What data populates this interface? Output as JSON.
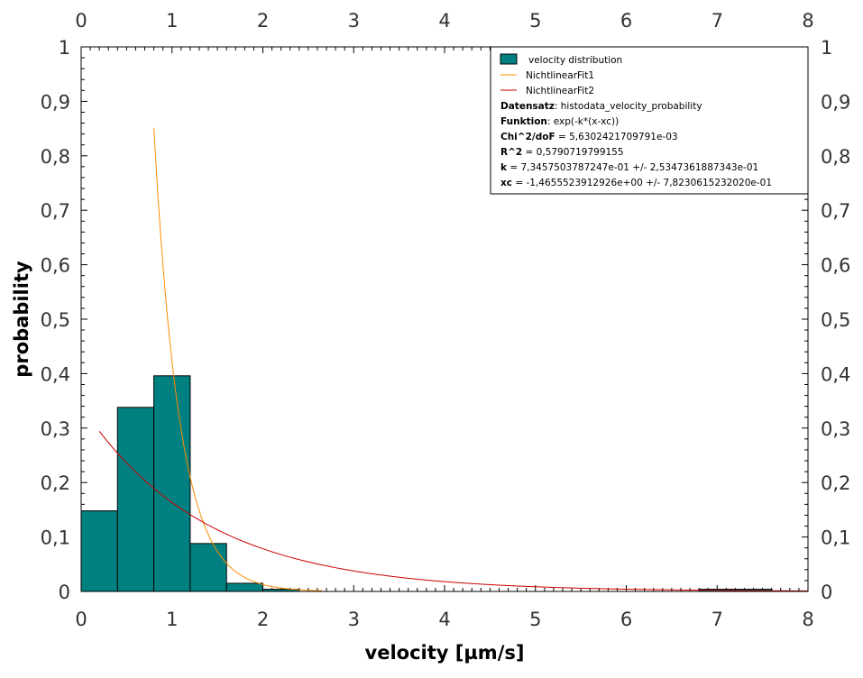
{
  "chart_data": {
    "type": "bar",
    "xlabel": "velocity [µm/s]",
    "ylabel": "probability",
    "xlim": [
      0,
      8
    ],
    "ylim": [
      0,
      1
    ],
    "x_ticks": [
      0,
      1,
      2,
      3,
      4,
      5,
      6,
      7,
      8
    ],
    "x_tick_labels": [
      "0",
      "1",
      "2",
      "3",
      "4",
      "5",
      "6",
      "7",
      "8"
    ],
    "y_ticks": [
      0,
      0.1,
      0.2,
      0.3,
      0.4,
      0.5,
      0.6,
      0.7,
      0.8,
      0.9,
      1
    ],
    "y_tick_labels": [
      "0",
      "0,1",
      "0,2",
      "0,3",
      "0,4",
      "0,5",
      "0,6",
      "0,7",
      "0,8",
      "0,9",
      "1"
    ],
    "histogram": {
      "name": "velocity distribution",
      "color": "#008080",
      "bins": [
        {
          "x0": 0.0,
          "x1": 0.4,
          "value": 0.148
        },
        {
          "x0": 0.4,
          "x1": 0.8,
          "value": 0.338
        },
        {
          "x0": 0.8,
          "x1": 1.2,
          "value": 0.396
        },
        {
          "x0": 1.2,
          "x1": 1.6,
          "value": 0.088
        },
        {
          "x0": 1.6,
          "x1": 2.0,
          "value": 0.015
        },
        {
          "x0": 2.0,
          "x1": 2.4,
          "value": 0.004
        },
        {
          "x0": 6.8,
          "x1": 7.2,
          "value": 0.004
        },
        {
          "x0": 7.2,
          "x1": 7.6,
          "value": 0.004
        }
      ]
    },
    "fits": [
      {
        "name": "NichtlinearFit1",
        "color": "#ff8c00",
        "function": "exp(-k*(x-xc))",
        "k": 3.5,
        "xc": 0.754,
        "x_start": 0.8,
        "x_end": 2.65
      },
      {
        "name": "NichtlinearFit2",
        "color": "#cc0000",
        "function": "exp(-k*(x-xc))",
        "k": 0.73457503787247,
        "xc": -1.4655523912926,
        "x_start": 0.2,
        "x_end": 8.0
      }
    ],
    "legend": {
      "placement": "top-right",
      "entries": [
        {
          "label": "velocity distribution",
          "kind": "box",
          "color": "#008080"
        },
        {
          "label": "NichtlinearFit1",
          "kind": "line",
          "color": "#ff8c00"
        },
        {
          "label": "NichtlinearFit2",
          "kind": "line",
          "color": "#cc0000"
        }
      ],
      "stats": [
        {
          "key": "Datensatz",
          "sep": ": ",
          "value": "histodata_velocity_probability"
        },
        {
          "key": "Funktion",
          "sep": ": ",
          "value": "exp(-k*(x-xc))"
        },
        {
          "key": "Chi^2/doF",
          "sep": " = ",
          "value": "5,6302421709791e-03"
        },
        {
          "key": "R^2",
          "sep": " = ",
          "value": "0,5790719799155"
        },
        {
          "key": "k",
          "sep": " = ",
          "value": "7,3457503787247e-01 +/- 2,5347361887343e-01"
        },
        {
          "key": "xc",
          "sep": " = ",
          "value": "-1,4655523912926e+00 +/- 7,8230615232020e-01"
        }
      ]
    }
  }
}
